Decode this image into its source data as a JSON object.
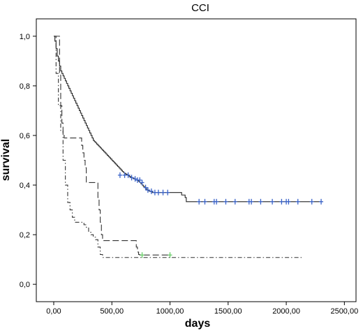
{
  "chart_data": {
    "type": "line",
    "title": "CCI",
    "xlabel": "days",
    "ylabel": "survival",
    "xlim": [
      -150,
      2600
    ],
    "ylim": [
      -0.07,
      1.07
    ],
    "xticks": [
      0,
      500,
      1000,
      1500,
      2000,
      2500
    ],
    "xtick_labels": [
      "0,00",
      "500,00",
      "1000,00",
      "1500,00",
      "2000,00",
      "2500,00"
    ],
    "yticks": [
      0,
      0.2,
      0.4,
      0.6,
      0.8,
      1.0
    ],
    "ytick_labels": [
      "0,0",
      "0,2",
      "0,4",
      "0,6",
      "0,8",
      "1,0"
    ],
    "grid": false,
    "series": [
      {
        "style": "solid",
        "color": "#222222",
        "censor_color": "#3a63c8",
        "x": [
          0,
          10,
          20,
          30,
          40,
          50,
          60,
          70,
          80,
          90,
          100,
          110,
          120,
          130,
          140,
          150,
          160,
          170,
          180,
          190,
          200,
          210,
          220,
          230,
          240,
          250,
          260,
          270,
          280,
          290,
          300,
          310,
          320,
          330,
          340,
          350,
          360,
          370,
          380,
          390,
          400,
          410,
          420,
          430,
          440,
          450,
          460,
          470,
          480,
          490,
          500,
          510,
          520,
          530,
          540,
          550,
          560,
          570,
          580,
          590,
          600,
          610,
          620,
          630,
          640,
          650,
          660,
          670,
          680,
          690,
          700,
          710,
          720,
          730,
          740,
          750,
          760,
          770,
          780,
          790,
          800,
          810,
          820,
          830,
          840,
          850,
          860,
          870,
          880,
          890,
          900,
          950,
          1000,
          1050,
          1100,
          1130,
          1140,
          2310
        ],
        "y": [
          1.0,
          0.98,
          0.95,
          0.92,
          0.9,
          0.88,
          0.86,
          0.85,
          0.84,
          0.83,
          0.82,
          0.81,
          0.8,
          0.79,
          0.78,
          0.77,
          0.76,
          0.75,
          0.74,
          0.73,
          0.72,
          0.71,
          0.7,
          0.69,
          0.68,
          0.67,
          0.66,
          0.65,
          0.64,
          0.63,
          0.62,
          0.61,
          0.6,
          0.59,
          0.58,
          0.575,
          0.57,
          0.565,
          0.56,
          0.555,
          0.55,
          0.545,
          0.54,
          0.535,
          0.53,
          0.525,
          0.52,
          0.515,
          0.51,
          0.505,
          0.5,
          0.495,
          0.49,
          0.485,
          0.48,
          0.475,
          0.47,
          0.465,
          0.46,
          0.455,
          0.45,
          0.447,
          0.444,
          0.441,
          0.438,
          0.435,
          0.432,
          0.43,
          0.428,
          0.425,
          0.42,
          0.42,
          0.418,
          0.415,
          0.41,
          0.405,
          0.4,
          0.395,
          0.39,
          0.385,
          0.38,
          0.378,
          0.376,
          0.374,
          0.372,
          0.37,
          0.37,
          0.37,
          0.37,
          0.37,
          0.37,
          0.37,
          0.37,
          0.37,
          0.36,
          0.35,
          0.333,
          0.333
        ],
        "censored": [
          [
            570,
            0.44
          ],
          [
            610,
            0.44
          ],
          [
            640,
            0.44
          ],
          [
            670,
            0.43
          ],
          [
            700,
            0.425
          ],
          [
            720,
            0.42
          ],
          [
            740,
            0.42
          ],
          [
            760,
            0.41
          ],
          [
            790,
            0.39
          ],
          [
            810,
            0.38
          ],
          [
            840,
            0.375
          ],
          [
            870,
            0.37
          ],
          [
            900,
            0.37
          ],
          [
            940,
            0.37
          ],
          [
            980,
            0.37
          ],
          [
            1250,
            0.333
          ],
          [
            1300,
            0.333
          ],
          [
            1380,
            0.333
          ],
          [
            1400,
            0.333
          ],
          [
            1480,
            0.333
          ],
          [
            1560,
            0.333
          ],
          [
            1680,
            0.333
          ],
          [
            1700,
            0.333
          ],
          [
            1780,
            0.333
          ],
          [
            1880,
            0.333
          ],
          [
            1960,
            0.333
          ],
          [
            2000,
            0.333
          ],
          [
            2020,
            0.333
          ],
          [
            2100,
            0.333
          ],
          [
            2220,
            0.333
          ],
          [
            2300,
            0.333
          ]
        ]
      },
      {
        "style": "longdash",
        "color": "#333333",
        "censor_color": "#66cc66",
        "x": [
          0,
          50,
          60,
          70,
          80,
          90,
          230,
          240,
          250,
          260,
          270,
          280,
          300,
          330,
          350,
          380,
          390,
          400,
          410,
          420,
          430,
          700,
          710,
          720,
          730,
          740,
          1000
        ],
        "y": [
          1.0,
          0.85,
          0.72,
          0.65,
          0.6,
          0.59,
          0.59,
          0.56,
          0.53,
          0.5,
          0.47,
          0.41,
          0.41,
          0.41,
          0.41,
          0.35,
          0.3,
          0.25,
          0.2,
          0.18,
          0.176,
          0.176,
          0.15,
          0.13,
          0.12,
          0.118,
          0.118
        ],
        "censored": [
          [
            760,
            0.118
          ],
          [
            1000,
            0.118
          ]
        ]
      },
      {
        "style": "dashdot",
        "color": "#333333",
        "x": [
          0,
          20,
          40,
          60,
          80,
          100,
          120,
          140,
          160,
          180,
          200,
          220,
          240,
          260,
          280,
          300,
          320,
          340,
          360,
          380,
          400,
          420,
          2150
        ],
        "y": [
          1.0,
          0.85,
          0.72,
          0.62,
          0.5,
          0.4,
          0.33,
          0.3,
          0.27,
          0.25,
          0.25,
          0.25,
          0.25,
          0.24,
          0.23,
          0.21,
          0.2,
          0.19,
          0.18,
          0.15,
          0.12,
          0.108,
          0.108
        ]
      }
    ]
  }
}
